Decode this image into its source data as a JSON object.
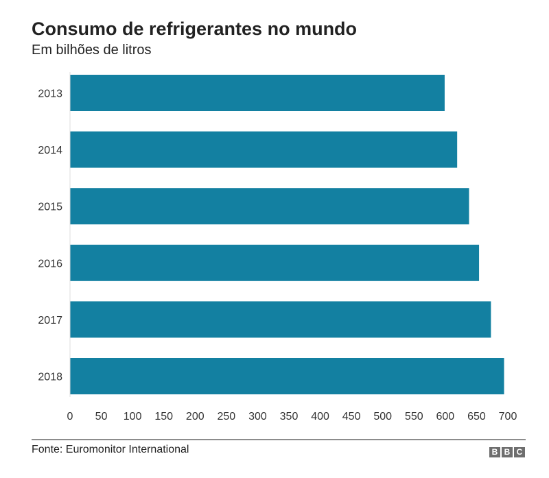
{
  "colors": {
    "bar": "#1380A1",
    "axis_line": "#dddddd",
    "text": "#222222"
  },
  "chart_data": {
    "type": "bar",
    "orientation": "horizontal",
    "title": "Consumo de refrigerantes no mundo",
    "subtitle": "Em bilhões de litros",
    "xlabel": "",
    "ylabel": "",
    "categories": [
      "2013",
      "2014",
      "2015",
      "2016",
      "2017",
      "2018"
    ],
    "values": [
      599,
      619,
      638,
      654,
      673,
      694
    ],
    "xlim": [
      0,
      700
    ],
    "xticks": [
      0,
      50,
      100,
      150,
      200,
      250,
      300,
      350,
      400,
      450,
      500,
      550,
      600,
      650,
      700
    ],
    "xtick_labels": [
      "0",
      "50",
      "100",
      "150",
      "200",
      "250",
      "300",
      "350",
      "400",
      "450",
      "500",
      "550",
      "600",
      "650",
      "700"
    ],
    "grid": false,
    "legend": "none"
  },
  "footer": {
    "source": "Fonte: Euromonitor International",
    "logo_letters": [
      "B",
      "B",
      "C"
    ],
    "logo_name": "BBC"
  }
}
